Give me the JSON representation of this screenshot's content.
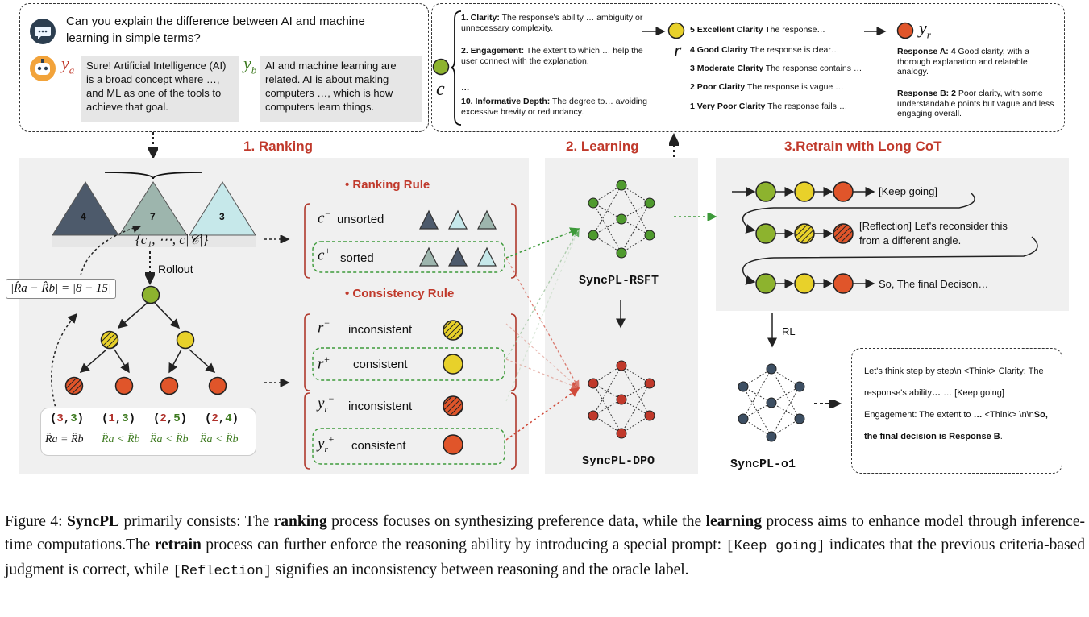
{
  "question": "Can you explain the difference between AI and machine learning in simple terms?",
  "ya_label": "y",
  "ya_sub": "a",
  "yb_label": "y",
  "yb_sub": "b",
  "ya_text": "Sure! Artificial Intelligence (AI) is a broad concept where …, and ML as one of the tools to achieve that goal.",
  "yb_text": "AI and machine learning are related. AI is about making computers …, which is how computers learn things.",
  "criteria": {
    "c_label": "c",
    "item1_title": "1. Clarity:",
    "item1_text": "The response's ability … ambiguity or unnecessary complexity.",
    "item2_title": "2. Engagement:",
    "item2_text": "The extent to which … help the user connect with the explanation.",
    "ellipsis": "…",
    "item10_title": "10. Informative Depth:",
    "item10_text": "The degree to… avoiding excessive brevity or redundancy.",
    "r_label": "r",
    "s5_title": "5 Excellent Clarity",
    "s5_text": "The response…",
    "s4_title": "4 Good Clarity",
    "s4_text": "The response is clear…",
    "s3_title": "3 Moderate Clarity",
    "s3_text": "The response contains …",
    "s2_title": "2 Poor Clarity",
    "s2_text": "The response is vague …",
    "s1_title": "1 Very Poor Clarity",
    "s1_text": "The response fails …",
    "yr_label": "y",
    "yr_sub": "r",
    "respA_title": "Response A: 4",
    "respA_text": "Good clarity, with a thorough explanation and relatable analogy.",
    "respB_title": "Response B: 2",
    "respB_text": "Poor clarity, with some understandable points but vague and less engaging overall."
  },
  "sections": {
    "ranking": "1. Ranking",
    "learning": "2. Learning",
    "retrain": "3.Retrain with Long CoT"
  },
  "ranking": {
    "tri1": "4",
    "tri2": "7",
    "tri3": "3",
    "set_label": "{c₁, ⋯, c|𝒞|}",
    "rollout": "Rollout",
    "diff": "|R̂a − R̂b| = |8 − 15|",
    "pairs": [
      "(3,3)",
      "(1,3)",
      "(2,5)",
      "(2,4)"
    ],
    "rels": [
      "R̂a = R̂b",
      "R̂a < R̂b",
      "R̂a < R̂b",
      "R̂a < R̂b"
    ]
  },
  "rules": {
    "ranking_rule": "Ranking Rule",
    "consistency_rule": "Consistency Rule",
    "c_minus": "unsorted",
    "c_plus": "sorted",
    "r_minus": "inconsistent",
    "r_plus": "consistent",
    "y_minus": "inconsistent",
    "y_plus": "consistent"
  },
  "models": {
    "rsft": "SyncPL-RSFT",
    "dpo": "SyncPL-DPO",
    "o1": "SyncPL-o1",
    "rl": "RL"
  },
  "retrain": {
    "keep_going": "[Keep going]",
    "reflection": "[Reflection] Let's reconsider this from a different angle.",
    "final": "So, The final Decison…"
  },
  "output_text": {
    "line1": "Let's think step by step\\n <Think> Clarity: The response's ability",
    "line1b": "… [Keep going] Engagement: The extent to",
    "line2": "…",
    "line3": "<Think> \\n\\n",
    "line3b": "So, the final decision is Response B",
    "line3c": "."
  },
  "caption": {
    "p1": "Figure 4: ",
    "p2": "SyncPL",
    "p3": " primarily consists: The ",
    "p4": "ranking",
    "p5": " process focuses on synthesizing preference data, while the ",
    "p6": "learning",
    "p7": " process aims to enhance model through inference-time computations.The ",
    "p8": "retrain",
    "p9": " process can further enforce the reasoning ability by introducing a special prompt: ",
    "p10": "[Keep going]",
    "p11": " indicates that the previous criteria-based judgment is correct, while ",
    "p12": "[Reflection]",
    "p13": " signifies an inconsistency between reasoning and the oracle label."
  },
  "colors": {
    "green": "#8db32e",
    "yellow": "#e8d12a",
    "orange": "#e0552a",
    "title_red": "#c0392b",
    "tri_dark": "#4d5a6b",
    "tri_mid": "#9db5ad",
    "tri_light": "#c6e8ea"
  }
}
